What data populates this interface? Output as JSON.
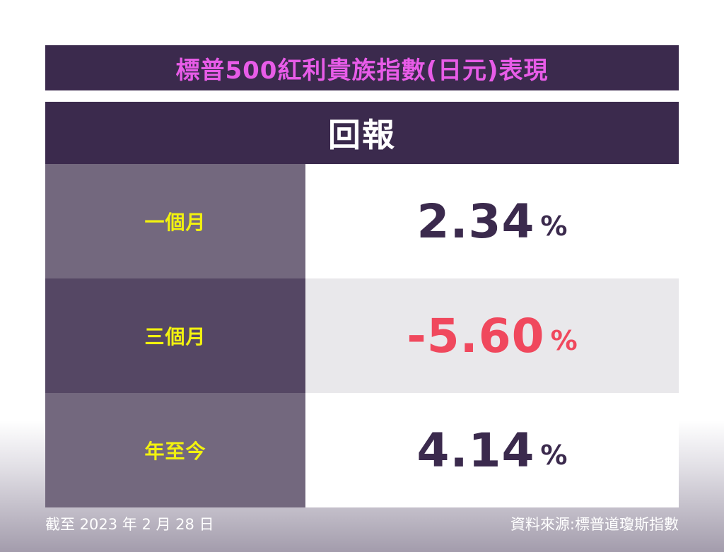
{
  "title": "標普500紅利貴族指數(日元)表現",
  "header": "回報",
  "rows": [
    {
      "label": "一個月",
      "value": "2.34",
      "unit": "%"
    },
    {
      "label": "三個月",
      "value": "-5.60",
      "unit": "%"
    },
    {
      "label": "年至今",
      "value": "4.14",
      "unit": "%"
    }
  ],
  "footer": {
    "date": "截至 2023 年 2 月 28 日",
    "source": "資料來源:標普道瓊斯指數"
  },
  "colors": {
    "title_bg": "#3b2a4d",
    "title_text": "#e85ce8",
    "label_text": "#f2f20f",
    "label_bg_light": "#73687e",
    "label_bg_dark": "#554764",
    "value_bg_white": "#ffffff",
    "value_bg_grey": "#e9e8eb",
    "value_positive": "#3b2a4d",
    "value_negative": "#f0485d"
  }
}
